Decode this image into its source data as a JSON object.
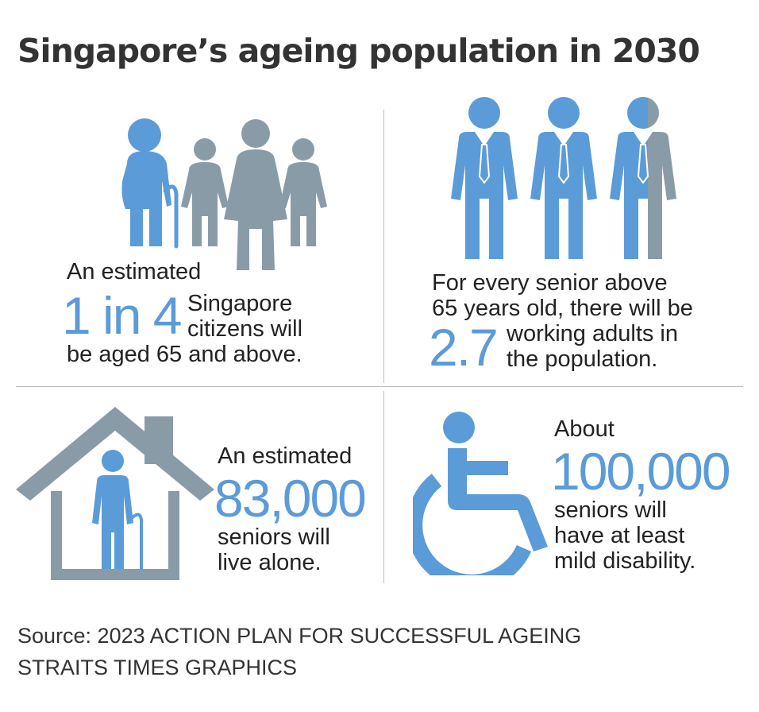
{
  "title": "Singapore’s ageing population in 2030",
  "colors": {
    "blue": "#5b9bd8",
    "grey": "#8a9ba8",
    "text": "#222222"
  },
  "panels": {
    "top_left": {
      "icon": "family-with-elder-icon",
      "lead": "An estimated",
      "figure": "1 in 4",
      "line1": "Singapore",
      "line2": "citizens will",
      "line3": "be aged 65 and above."
    },
    "top_right": {
      "icon": "three-working-adults-icon",
      "line1": "For every senior above",
      "line2": "65 years old, there will be",
      "figure": "2.7",
      "line3": "working adults in",
      "line4": "the population."
    },
    "bottom_left": {
      "icon": "senior-in-house-icon",
      "lead": "An estimated",
      "figure": "83,000",
      "line1": "seniors will",
      "line2": "live alone."
    },
    "bottom_right": {
      "icon": "wheelchair-icon",
      "lead": "About",
      "figure": "100,000",
      "line1": "seniors will",
      "line2": "have at least",
      "line3": "mild disability."
    }
  },
  "source": {
    "line1": "Source: 2023 ACTION PLAN FOR SUCCESSFUL AGEING",
    "line2": "STRAITS TIMES GRAPHICS"
  }
}
